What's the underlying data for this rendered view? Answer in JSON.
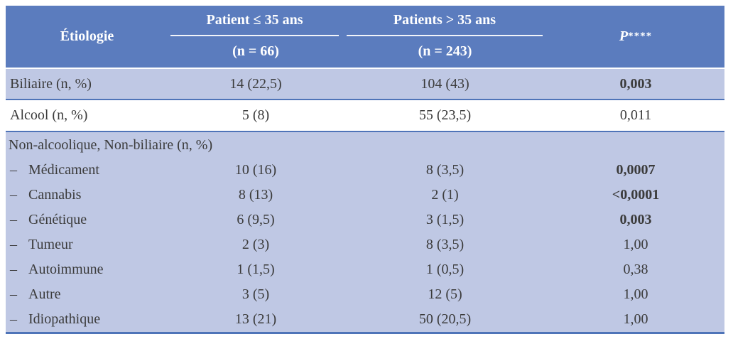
{
  "table": {
    "header": {
      "etiology": "Étiologie",
      "col_young_line1": "Patient ≤ 35 ans",
      "col_young_line2": "(n = 66)",
      "col_old_line1": "Patients > 35 ans",
      "col_old_line2": "(n = 243)",
      "p_label": "P",
      "p_stars": "****"
    },
    "rows": [
      {
        "label": "Biliaire (n, %)",
        "young": "14 (22,5)",
        "old": "104 (43)",
        "p": "0,003"
      },
      {
        "label": "Alcool (n, %)",
        "young": "5 (8)",
        "old": "55 (23,5)",
        "p": "0,011"
      }
    ],
    "section": {
      "label": "Non-alcoolique, Non-biliaire (n, %)",
      "items": [
        {
          "dash": "–",
          "label": "Médicament",
          "young": "10 (16)",
          "old": "8 (3,5)",
          "p": "0,0007"
        },
        {
          "dash": "–",
          "label": "Cannabis",
          "young": "8 (13)",
          "old": "2 (1)",
          "p": "<0,0001"
        },
        {
          "dash": "–",
          "label": "Génétique",
          "young": "6 (9,5)",
          "old": "3 (1,5)",
          "p": "0,003"
        },
        {
          "dash": "–",
          "label": "Tumeur",
          "young": "2 (3)",
          "old": "8 (3,5)",
          "p": "1,00"
        },
        {
          "dash": "–",
          "label": "Autoimmune",
          "young": "1 (1,5)",
          "old": "1 (0,5)",
          "p": "0,38"
        },
        {
          "dash": "–",
          "label": "Autre",
          "young": "3 (5)",
          "old": "12 (5)",
          "p": "1,00"
        },
        {
          "dash": "–",
          "label": "Idiopathique",
          "young": "13 (21)",
          "old": "50 (20,5)",
          "p": "1,00"
        }
      ]
    }
  },
  "colors": {
    "header_bg": "#5b7cbe",
    "row_alt_bg": "#bfc8e4",
    "separator_line": "#4f74b8",
    "header_text": "#ffffff",
    "body_text": "#3b3b3b"
  },
  "chart_data": {
    "type": "table",
    "columns": [
      "Étiologie",
      "Patient ≤ 35 ans (n = 66)",
      "Patients > 35 ans (n = 243)",
      "P****"
    ],
    "rows": [
      [
        "Biliaire (n, %)",
        "14 (22,5)",
        "104 (43)",
        "0,003"
      ],
      [
        "Alcool (n, %)",
        "5 (8)",
        "55 (23,5)",
        "0,011"
      ],
      [
        "Non-alcoolique, Non-biliaire (n, %)",
        "",
        "",
        ""
      ],
      [
        "– Médicament",
        "10 (16)",
        "8 (3,5)",
        "0,0007"
      ],
      [
        "– Cannabis",
        "8 (13)",
        "2 (1)",
        "<0,0001"
      ],
      [
        "– Génétique",
        "6 (9,5)",
        "3 (1,5)",
        "0,003"
      ],
      [
        "– Tumeur",
        "2 (3)",
        "8 (3,5)",
        "1,00"
      ],
      [
        "– Autoimmune",
        "1 (1,5)",
        "1 (0,5)",
        "0,38"
      ],
      [
        "– Autre",
        "3 (5)",
        "12 (5)",
        "1,00"
      ],
      [
        "– Idiopathique",
        "13 (21)",
        "50 (20,5)",
        "1,00"
      ]
    ],
    "bold_p_rows": [
      0,
      3,
      4,
      5
    ]
  }
}
